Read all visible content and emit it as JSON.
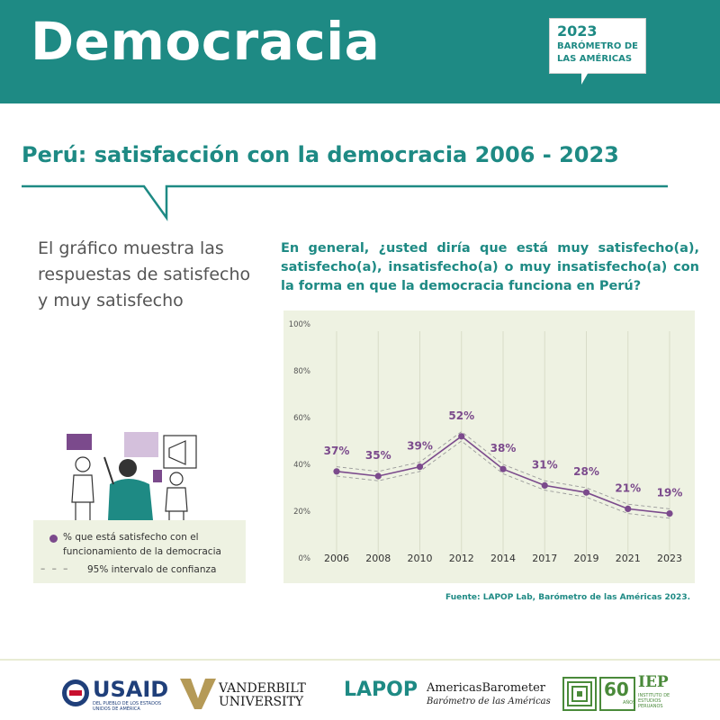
{
  "header": {
    "title": "Democracia",
    "badge_year": "2023",
    "badge_line1": "BARÓMETRO DE",
    "badge_line2": "LAS AMÉRICAS"
  },
  "subtitle": "Perú: satisfacción con la democracia 2006 - 2023",
  "description": "El gráfico muestra las respuestas de satisfecho y muy satisfecho",
  "question": "En general, ¿usted diría que está muy satisfecho(a), satisfecho(a), insatisfecho(a) o muy insatisfecho(a) con la forma en que la democracia funciona en Perú?",
  "legend": {
    "point_label": "% que está satisfecho con el funcionamiento de la democracia",
    "dash_symbol": "– – –",
    "interval_label": "95% intervalo de confianza"
  },
  "source": "Fuente: LAPOP Lab, Barómetro de las Américas 2023.",
  "colors": {
    "teal": "#1e8a84",
    "purple": "#7b4a8c",
    "chart_bg": "#eef2e2"
  },
  "chart_data": {
    "type": "line",
    "categories": [
      "2006",
      "2008",
      "2010",
      "2012",
      "2014",
      "2017",
      "2019",
      "2021",
      "2023"
    ],
    "values": [
      37,
      35,
      39,
      52,
      38,
      31,
      28,
      21,
      19
    ],
    "value_labels": [
      "37%",
      "35%",
      "39%",
      "52%",
      "38%",
      "31%",
      "28%",
      "21%",
      "19%"
    ],
    "ci_upper": [
      39,
      37,
      41,
      54,
      40,
      33,
      30,
      23,
      21
    ],
    "ci_lower": [
      35,
      33,
      37,
      50,
      36,
      29,
      26,
      19,
      17
    ],
    "yticks": [
      0,
      20,
      40,
      60,
      80,
      100
    ],
    "ytick_labels": [
      "0%",
      "20%",
      "40%",
      "60%",
      "80%",
      "100%"
    ],
    "ylim": [
      0,
      100
    ],
    "grid": "vertical"
  },
  "logos": {
    "usaid": "USAID",
    "usaid_sub1": "DEL PUEBLO DE LOS ESTADOS",
    "usaid_sub2": "UNIDOS DE AMÉRICA",
    "vanderbilt1": "VANDERBILT",
    "vanderbilt2": "UNIVERSITY",
    "lapop": "LAPOP",
    "ab1": "AmericasBarometer",
    "ab2": "Barómetro de las Américas",
    "iep_60": "60",
    "iep_anos": "AÑOS",
    "iep": "IEP",
    "iep_sub1": "INSTITUTO DE",
    "iep_sub2": "ESTUDIOS",
    "iep_sub3": "PERUANOS"
  }
}
